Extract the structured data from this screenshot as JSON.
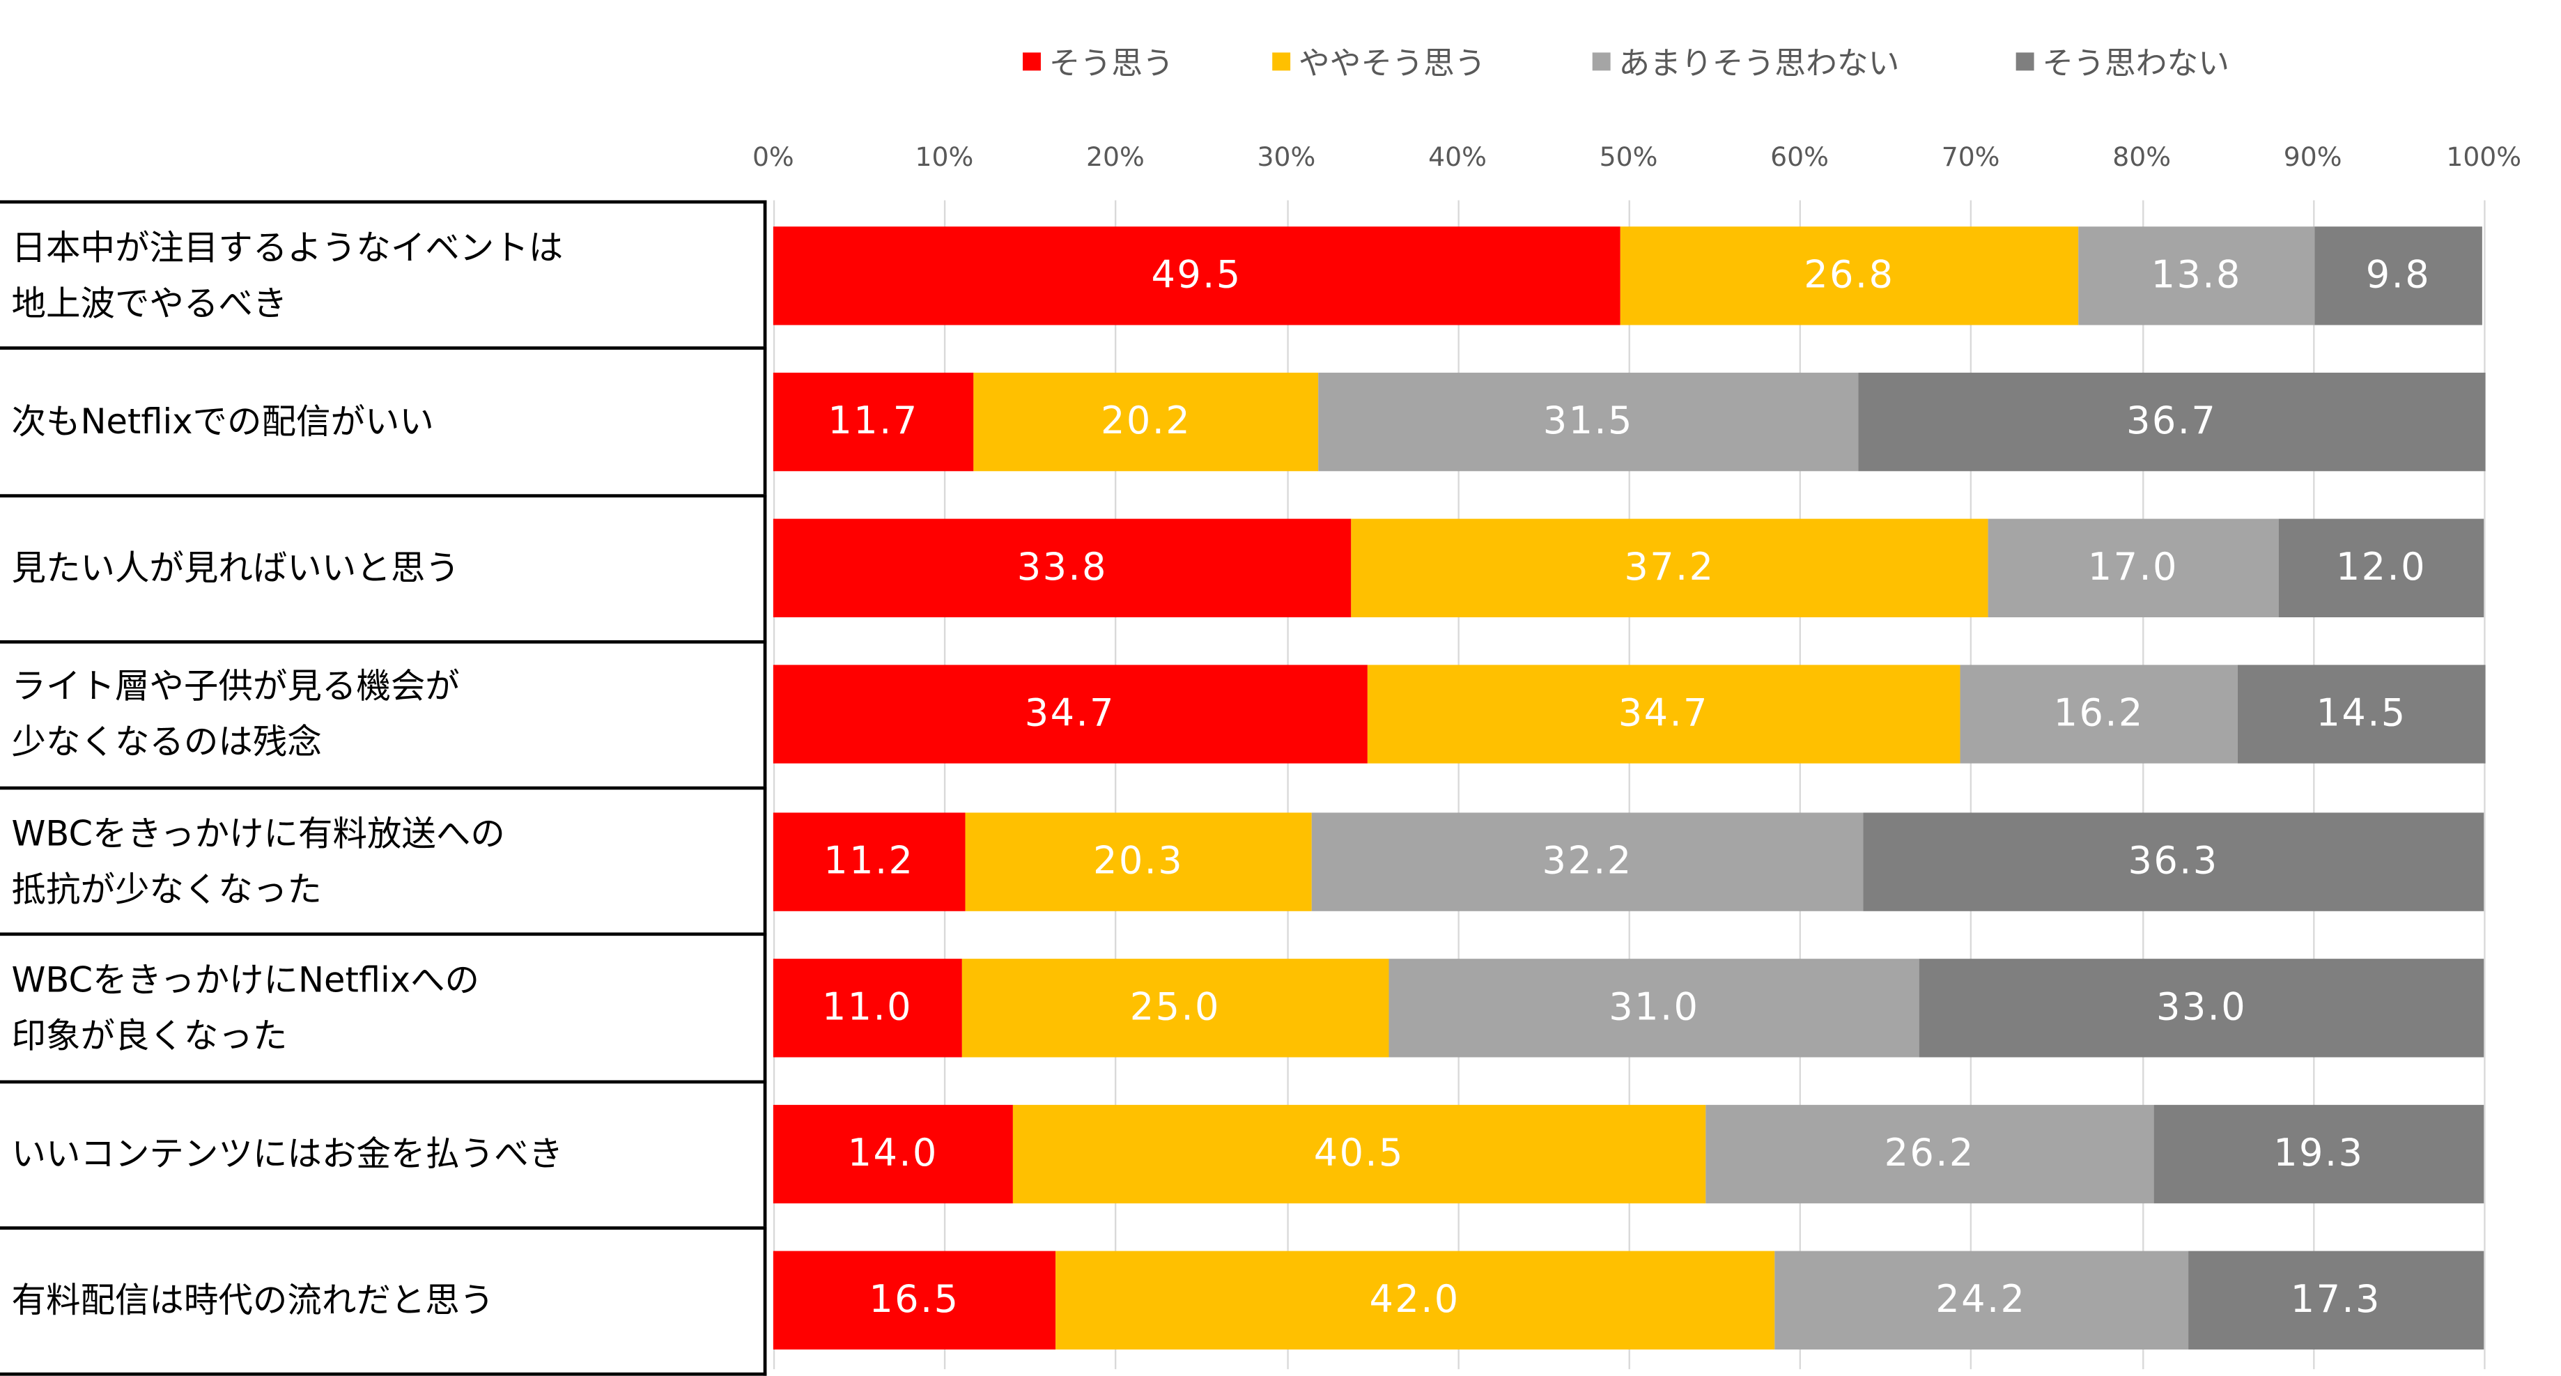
{
  "chart_data": {
    "type": "bar",
    "orientation": "horizontal",
    "stacked": true,
    "title": "",
    "xlim": [
      0,
      100
    ],
    "ticks": [
      "0%",
      "10%",
      "20%",
      "30%",
      "40%",
      "50%",
      "60%",
      "70%",
      "80%",
      "90%",
      "100%"
    ],
    "grid": true,
    "legend_placement": "top",
    "categories": [
      "日本中が注目するようなイベントは\n地上波でやるべき",
      "次もNetflixでの配信がいい",
      "見たい人が見ればいいと思う",
      "ライト層や子供が見る機会が\n少なくなるのは残念",
      "WBCをきっかけに有料放送への\n抵抗が少なくなった",
      "WBCをきっかけにNetflixへの\n印象が良くなった",
      "いいコンテンツにはお金を払うべき",
      "有料配信は時代の流れだと思う"
    ],
    "series": [
      {
        "name": "そう思う",
        "color": "#ff0000",
        "values": [
          49.5,
          11.7,
          33.8,
          34.7,
          11.2,
          11.0,
          14.0,
          16.5
        ]
      },
      {
        "name": "ややそう思う",
        "color": "#ffc000",
        "values": [
          26.8,
          20.2,
          37.2,
          34.7,
          20.3,
          25.0,
          40.5,
          42.0
        ]
      },
      {
        "name": "あまりそう思わない",
        "color": "#a5a5a5",
        "values": [
          13.8,
          31.5,
          17.0,
          16.2,
          32.2,
          31.0,
          26.2,
          24.2
        ]
      },
      {
        "name": "そう思わない",
        "color": "#7f7f7f",
        "values": [
          9.8,
          36.7,
          12.0,
          14.5,
          36.3,
          33.0,
          19.3,
          17.3
        ]
      }
    ]
  }
}
